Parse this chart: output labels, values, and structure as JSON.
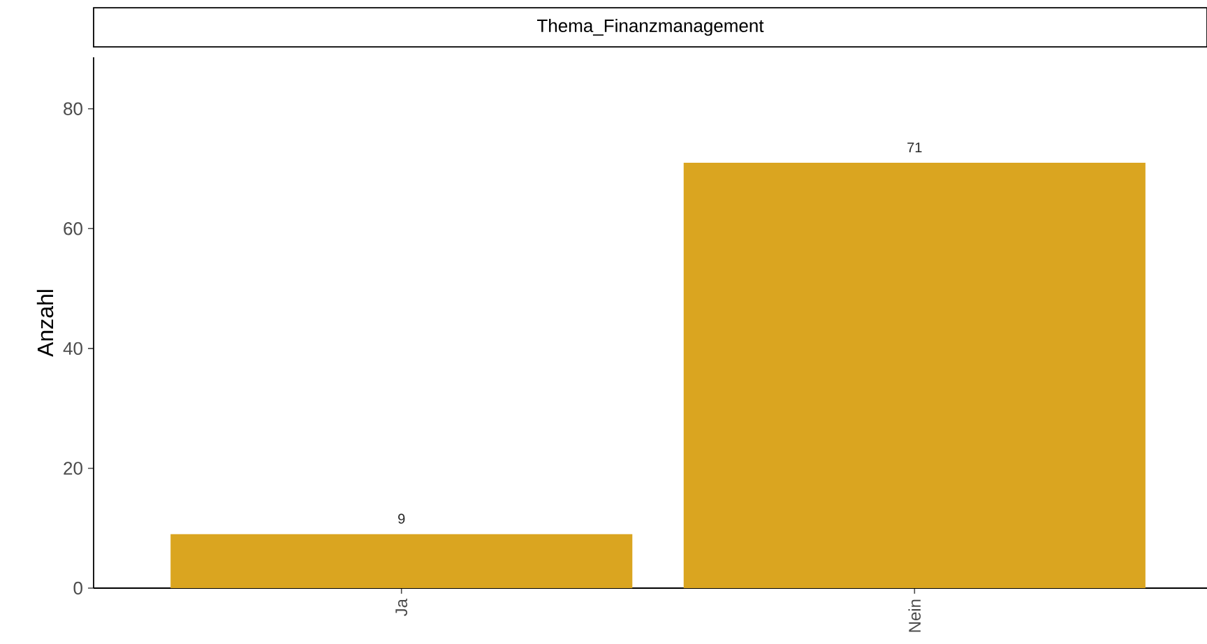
{
  "chart_data": {
    "type": "bar",
    "title": "Thema_Finanzmanagement",
    "ylabel": "Anzahl",
    "categories": [
      "Ja",
      "Nein"
    ],
    "values": [
      9,
      71
    ],
    "color": "#daa520",
    "ylim": [
      0,
      88.6
    ],
    "yticks": [
      0,
      20,
      40,
      60,
      80
    ],
    "grid": false,
    "data_labels": true
  }
}
